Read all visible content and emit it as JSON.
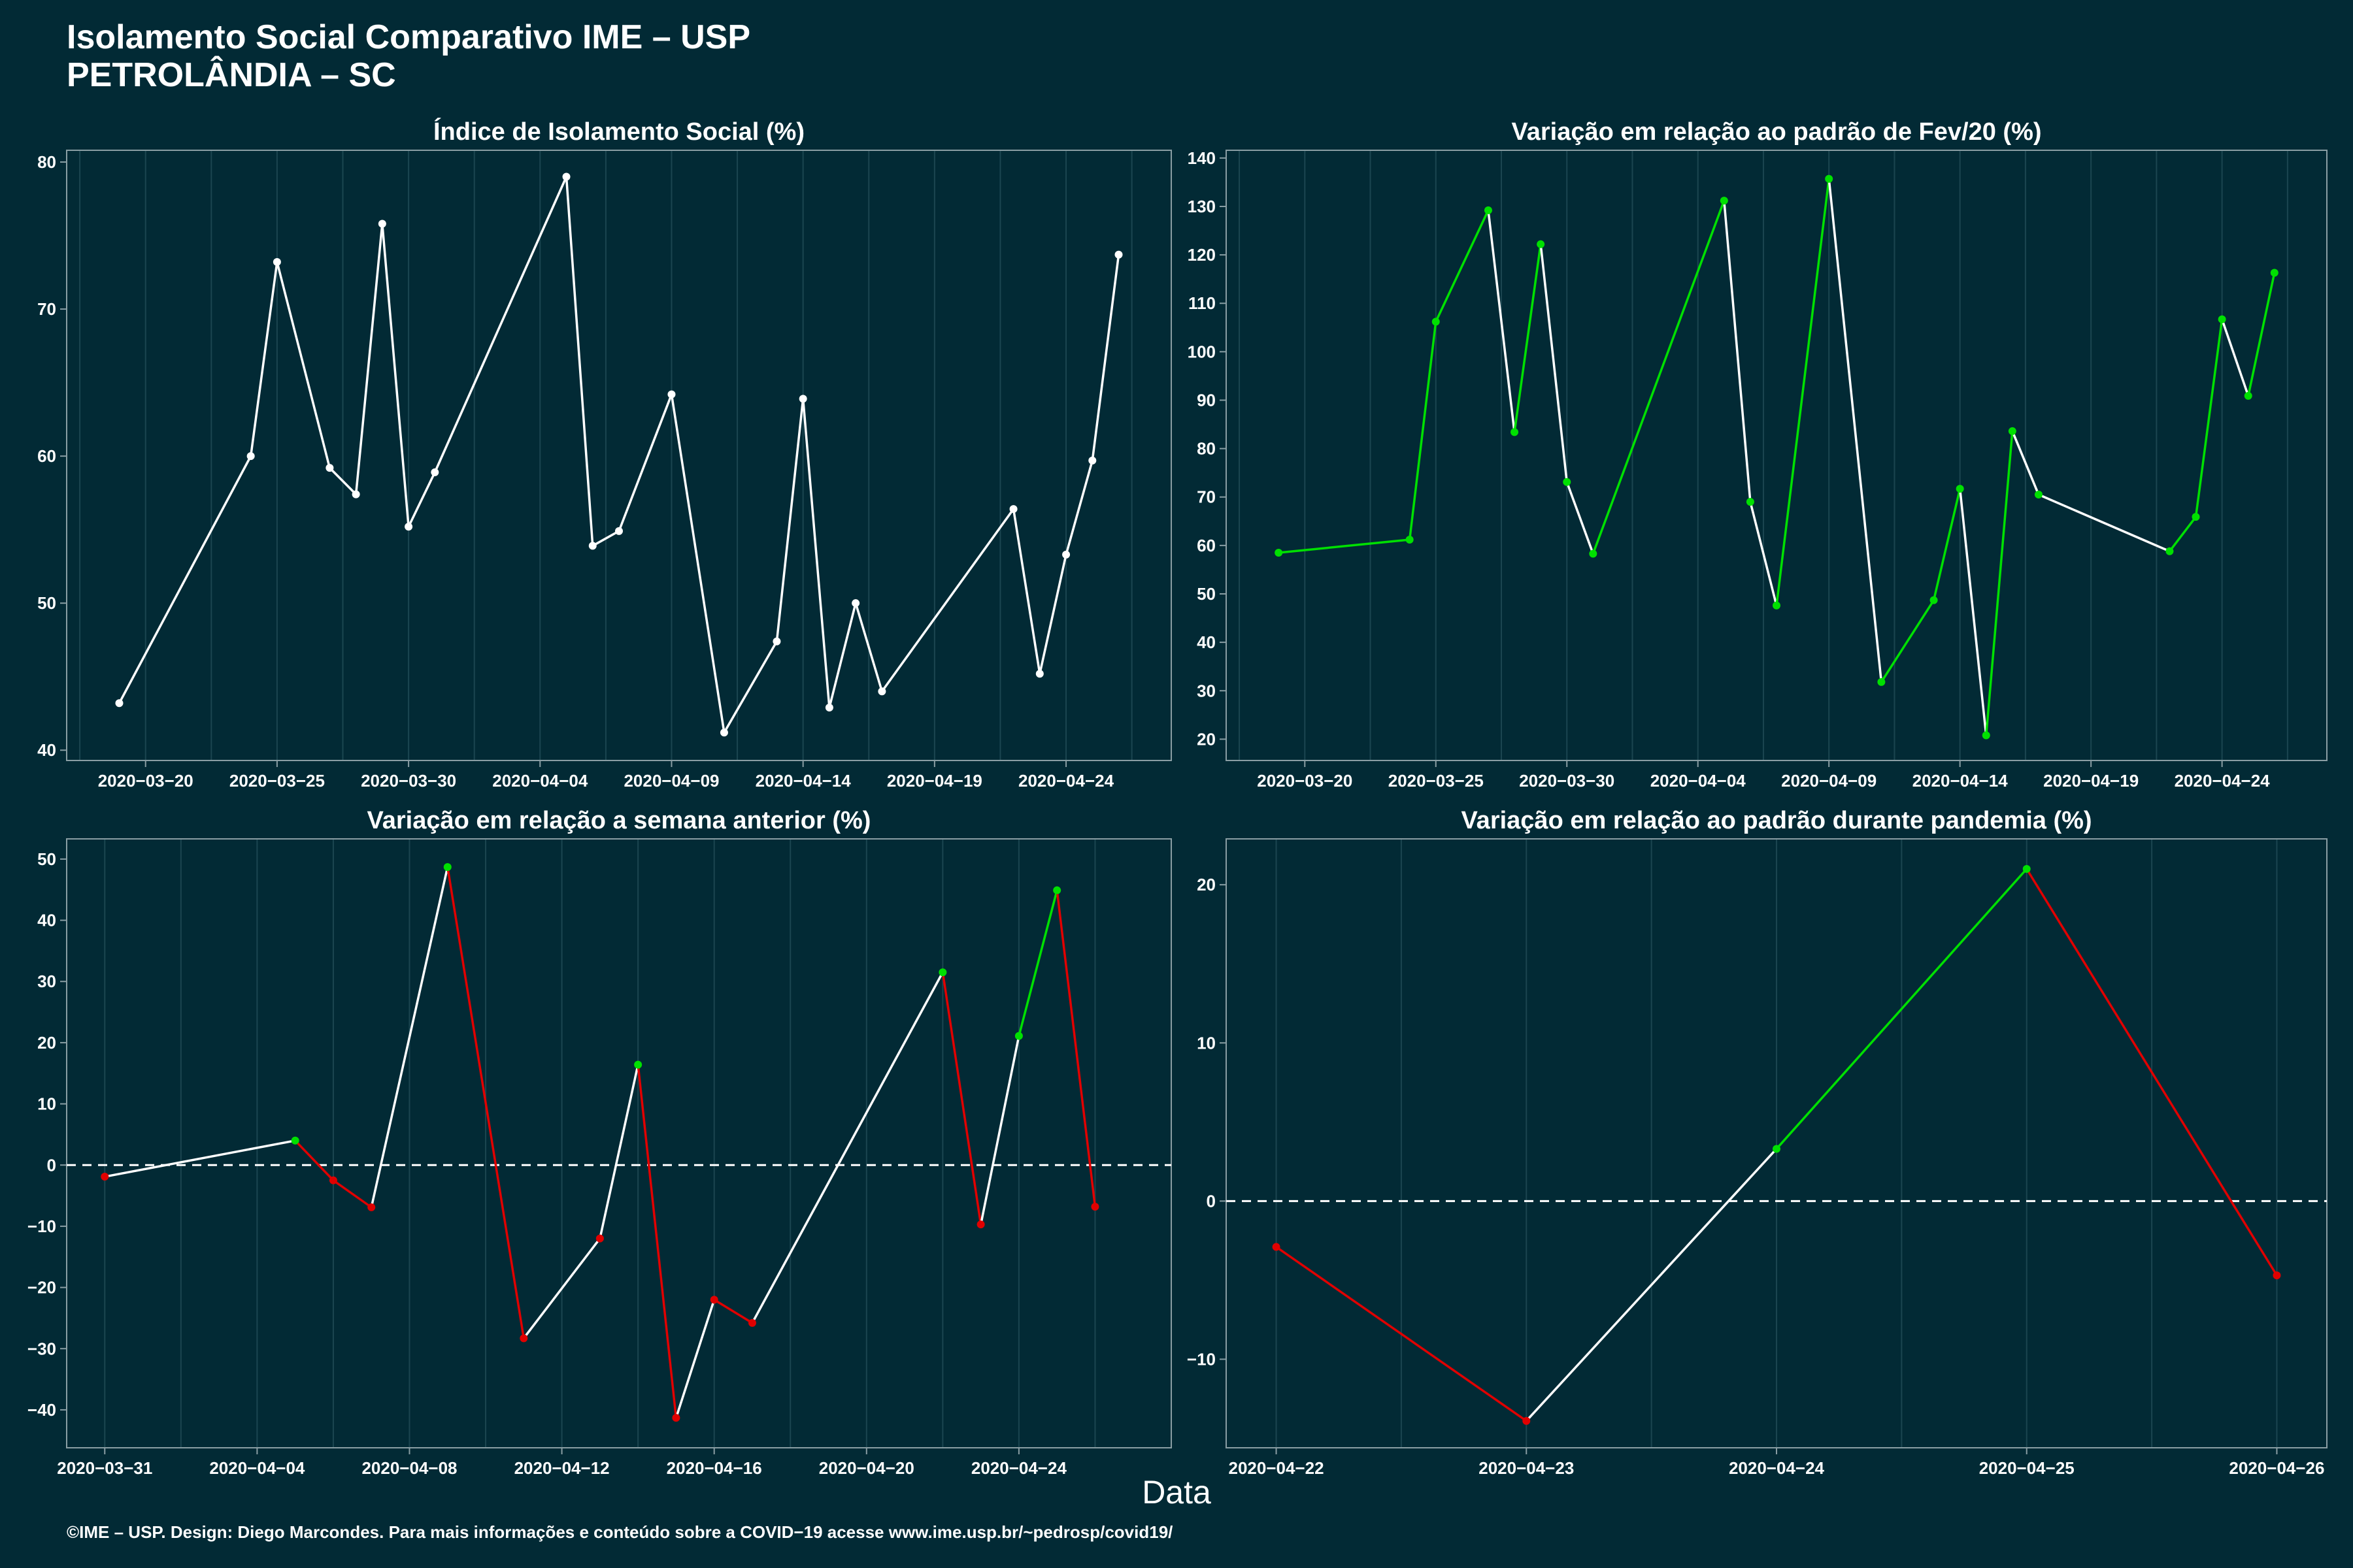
{
  "header": {
    "title_line1": "Isolamento Social Comparativo IME – USP",
    "title_line2": "PETROLÂNDIA – SC"
  },
  "xlabel": "Data",
  "footer": "©IME – USP. Design: Diego Marcondes. Para mais informações e conteúdo sobre a COVID−19 acesse www.ime.usp.br/~pedrosp/covid19/",
  "colors": {
    "background": "#022a35",
    "line_default": "#ffffff",
    "line_increase": "#00e000",
    "line_decrease": "#e00000",
    "grid": "#1b4550"
  },
  "chart_data": [
    {
      "type": "line",
      "title": "Índice de Isolamento Social (%)",
      "xlabel": "",
      "ylabel": "",
      "color_mode": "white",
      "xlim": [
        "2020-03-17",
        "2020-04-28"
      ],
      "ylim": [
        39.3,
        80.8
      ],
      "yticks": [
        40,
        50,
        60,
        70,
        80
      ],
      "xticks": [
        "2020-03-20",
        "2020-03-25",
        "2020-03-30",
        "2020-04-04",
        "2020-04-09",
        "2020-04-14",
        "2020-04-19",
        "2020-04-24"
      ],
      "grid": true,
      "x": [
        "2020-03-19",
        "2020-03-24",
        "2020-03-25",
        "2020-03-27",
        "2020-03-28",
        "2020-03-29",
        "2020-03-30",
        "2020-03-31",
        "2020-04-05",
        "2020-04-06",
        "2020-04-07",
        "2020-04-09",
        "2020-04-11",
        "2020-04-13",
        "2020-04-14",
        "2020-04-15",
        "2020-04-16",
        "2020-04-17",
        "2020-04-22",
        "2020-04-23",
        "2020-04-24",
        "2020-04-25",
        "2020-04-26"
      ],
      "values": [
        43.2,
        60.0,
        73.2,
        59.2,
        57.4,
        75.8,
        55.2,
        58.9,
        79.0,
        53.9,
        54.9,
        64.2,
        41.2,
        47.4,
        63.9,
        42.9,
        50.0,
        44.0,
        56.4,
        45.2,
        53.3,
        59.7,
        73.7
      ]
    },
    {
      "type": "line",
      "title": "Variação em relação ao padrão de Fev/20 (%)",
      "xlabel": "",
      "ylabel": "",
      "color_mode": "gain",
      "xlim": [
        "2020-03-17",
        "2020-04-28"
      ],
      "ylim": [
        15.6,
        141.6
      ],
      "yticks": [
        20,
        30,
        40,
        50,
        60,
        70,
        80,
        90,
        100,
        110,
        120,
        130,
        140
      ],
      "xticks": [
        "2020-03-20",
        "2020-03-25",
        "2020-03-30",
        "2020-04-04",
        "2020-04-09",
        "2020-04-14",
        "2020-04-19",
        "2020-04-24"
      ],
      "grid": true,
      "x": [
        "2020-03-19",
        "2020-03-24",
        "2020-03-25",
        "2020-03-27",
        "2020-03-28",
        "2020-03-29",
        "2020-03-30",
        "2020-03-31",
        "2020-04-05",
        "2020-04-06",
        "2020-04-07",
        "2020-04-09",
        "2020-04-11",
        "2020-04-13",
        "2020-04-14",
        "2020-04-15",
        "2020-04-16",
        "2020-04-17",
        "2020-04-22",
        "2020-04-23",
        "2020-04-24",
        "2020-04-25",
        "2020-04-26"
      ],
      "values": [
        58.5,
        61.2,
        106.2,
        129.2,
        83.4,
        122.2,
        73.1,
        58.3,
        131.2,
        69.0,
        47.6,
        135.7,
        31.8,
        48.7,
        71.7,
        20.8,
        83.6,
        70.5,
        58.8,
        65.9,
        106.7,
        90.9,
        116.3
      ]
    },
    {
      "type": "line",
      "title": "Variação em relação a semana anterior (%)",
      "xlabel": "",
      "ylabel": "",
      "color_mode": "trend",
      "xlim": [
        "2020-03-30",
        "2020-04-28"
      ],
      "ylim": [
        -46.2,
        53.3
      ],
      "yticks": [
        -40,
        -30,
        -20,
        -10,
        0,
        10,
        20,
        30,
        40,
        50
      ],
      "xticks": [
        "2020-03-31",
        "2020-04-04",
        "2020-04-08",
        "2020-04-12",
        "2020-04-16",
        "2020-04-20",
        "2020-04-24"
      ],
      "grid": true,
      "hline": 0,
      "x": [
        "2020-03-31",
        "2020-04-05",
        "2020-04-06",
        "2020-04-07",
        "2020-04-09",
        "2020-04-11",
        "2020-04-13",
        "2020-04-14",
        "2020-04-15",
        "2020-04-16",
        "2020-04-17",
        "2020-04-22",
        "2020-04-23",
        "2020-04-24",
        "2020-04-25",
        "2020-04-26"
      ],
      "values": [
        -1.9,
        4.0,
        -2.5,
        -6.9,
        48.7,
        -28.3,
        -12.0,
        16.4,
        -41.3,
        -22.0,
        -25.8,
        31.5,
        -9.7,
        21.1,
        44.9,
        -6.8
      ]
    },
    {
      "type": "line",
      "title": "Variação em relação ao padrão durante pandemia (%)",
      "xlabel": "",
      "ylabel": "",
      "color_mode": "trend",
      "xlim": [
        "2020-04-21.8",
        "2020-04-26.2"
      ],
      "ylim": [
        -15.6,
        22.9
      ],
      "yticks": [
        -10,
        0,
        10,
        20
      ],
      "xticks": [
        "2020-04-22",
        "2020-04-23",
        "2020-04-24",
        "2020-04-25",
        "2020-04-26"
      ],
      "grid": true,
      "hline": 0,
      "x": [
        "2020-04-22",
        "2020-04-23",
        "2020-04-24",
        "2020-04-25",
        "2020-04-26"
      ],
      "values": [
        -2.9,
        -13.9,
        3.3,
        21.0,
        -4.7
      ]
    }
  ]
}
